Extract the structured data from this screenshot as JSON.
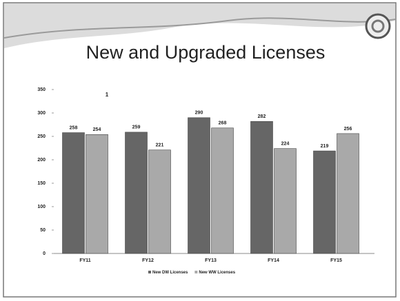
{
  "chart_data": {
    "type": "bar",
    "title": "New and Upgraded Licenses",
    "annotation": "1",
    "categories": [
      "FY11",
      "FY12",
      "FY13",
      "FY14",
      "FY15"
    ],
    "series": [
      {
        "name": "New DW Licenses",
        "color": "#666666",
        "values": [
          258,
          259,
          290,
          282,
          219
        ]
      },
      {
        "name": "New WW Licenses",
        "color": "#a9a9a9",
        "values": [
          254,
          221,
          268,
          224,
          256
        ]
      }
    ],
    "ylim": [
      0,
      350
    ],
    "yticks": [
      0,
      50,
      100,
      150,
      200,
      250,
      300,
      350
    ],
    "grid": false,
    "legend": "bottom"
  }
}
